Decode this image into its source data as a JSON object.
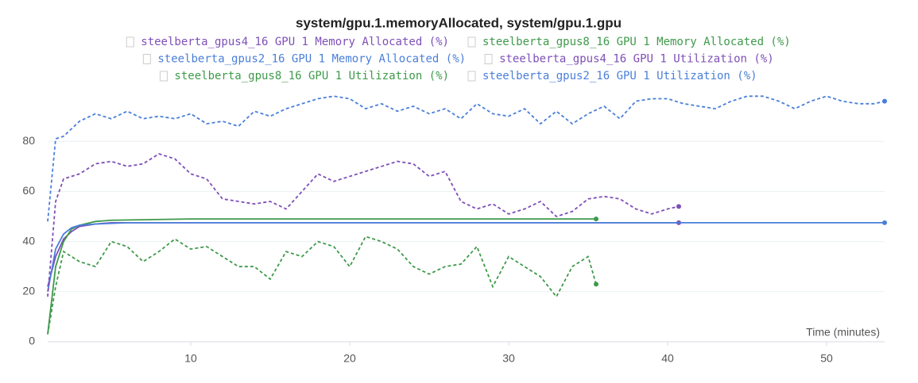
{
  "chart_data": {
    "type": "line",
    "title": "system/gpu.1.memoryAllocated, system/gpu.1.gpu",
    "x_label": "Time (minutes)",
    "xlim": [
      1,
      53.65
    ],
    "xticks": [
      10,
      20,
      30,
      40,
      50
    ],
    "ylim": [
      0,
      100
    ],
    "yticks": [
      0,
      20,
      40,
      60,
      80
    ],
    "grid": true,
    "series": [
      {
        "name": "steelberta_gpus4_16 GPU 1 Memory Allocated (%)",
        "color": "#7e4fb8",
        "style": "solid",
        "x": [
          1,
          1.5,
          2,
          2.5,
          3,
          4,
          5,
          40.7
        ],
        "values": [
          22,
          34,
          41,
          44,
          46,
          47,
          47.5,
          47.5
        ]
      },
      {
        "name": "steelberta_gpus8_16 GPU 1 Memory Allocated (%)",
        "color": "#3e9a4a",
        "style": "solid",
        "x": [
          1,
          1.5,
          2,
          2.5,
          3,
          4,
          5,
          10,
          35.5
        ],
        "values": [
          3,
          30,
          40,
          45,
          46.5,
          48,
          48.5,
          49,
          49
        ]
      },
      {
        "name": "steelberta_gpus2_16 GPU 1 Memory Allocated (%)",
        "color": "#4a7fd9",
        "style": "solid",
        "x": [
          1,
          1.5,
          2,
          2.5,
          3,
          4,
          6,
          53.65
        ],
        "values": [
          20,
          37,
          43,
          45.5,
          46.5,
          47,
          47.5,
          47.5
        ]
      },
      {
        "name": "steelberta_gpus4_16 GPU 1 Utilization (%)",
        "color": "#7e4fb8",
        "style": "dashed",
        "x": [
          1,
          1.5,
          2,
          3,
          4,
          5,
          6,
          7,
          8,
          9,
          10,
          11,
          12,
          13,
          14,
          15,
          16,
          17,
          18,
          19,
          20,
          21,
          22,
          23,
          24,
          25,
          26,
          27,
          28,
          29,
          30,
          31,
          32,
          33,
          34,
          35,
          36,
          37,
          38,
          39,
          40,
          40.7
        ],
        "values": [
          18,
          56,
          65,
          67,
          71,
          72,
          70,
          71,
          75,
          73,
          67,
          65,
          57,
          56,
          55,
          56,
          53,
          60,
          67,
          64,
          66,
          68,
          70,
          72,
          71,
          66,
          68,
          56,
          53,
          55,
          51,
          53,
          56,
          50,
          52,
          57,
          58,
          57,
          53,
          51,
          53,
          54
        ]
      },
      {
        "name": "steelberta_gpus8_16 GPU 1 Utilization (%)",
        "color": "#3e9a4a",
        "style": "dashed",
        "x": [
          1,
          1.5,
          2,
          3,
          4,
          5,
          6,
          7,
          8,
          9,
          10,
          11,
          12,
          13,
          14,
          15,
          16,
          17,
          18,
          19,
          20,
          21,
          22,
          23,
          24,
          25,
          26,
          27,
          28,
          29,
          30,
          31,
          32,
          33,
          34,
          35,
          35.5
        ],
        "values": [
          3,
          22,
          36,
          32,
          30,
          40,
          38,
          32,
          36,
          41,
          37,
          38,
          34,
          30,
          30,
          25,
          36,
          34,
          40,
          38,
          30,
          42,
          40,
          37,
          30,
          27,
          30,
          31,
          38,
          22,
          34,
          30,
          26,
          18,
          30,
          34,
          23
        ]
      },
      {
        "name": "steelberta_gpus2_16 GPU 1 Utilization (%)",
        "color": "#4a7fd9",
        "style": "dashed",
        "x": [
          1,
          1.5,
          2,
          3,
          4,
          5,
          6,
          7,
          8,
          9,
          10,
          11,
          12,
          13,
          14,
          15,
          16,
          17,
          18,
          19,
          20,
          21,
          22,
          23,
          24,
          25,
          26,
          27,
          28,
          29,
          30,
          31,
          32,
          33,
          34,
          35,
          36,
          37,
          38,
          39,
          40,
          41,
          42,
          43,
          44,
          45,
          46,
          47,
          48,
          49,
          50,
          51,
          52,
          53,
          53.65
        ],
        "values": [
          48,
          81,
          82,
          88,
          91,
          89,
          92,
          89,
          90,
          89,
          91,
          87,
          88,
          86,
          92,
          90,
          93,
          95,
          97,
          98,
          97,
          93,
          95,
          92,
          94,
          91,
          93,
          89,
          95,
          91,
          90,
          93,
          87,
          92,
          87,
          91,
          94,
          89,
          96,
          97,
          97,
          95,
          94,
          93,
          96,
          98,
          98,
          96,
          93,
          96,
          98,
          96,
          95,
          95,
          96
        ]
      }
    ]
  }
}
